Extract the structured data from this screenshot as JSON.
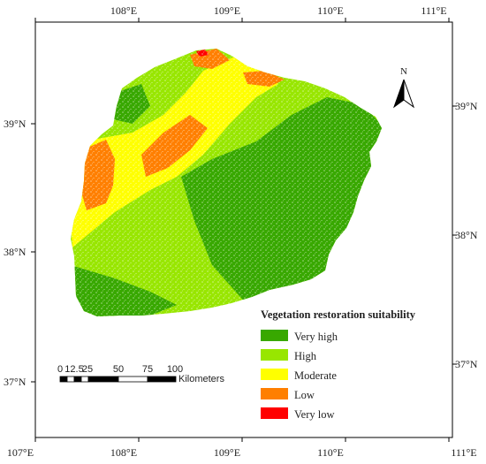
{
  "map": {
    "north_label": "N",
    "lon_labels": [
      "107°E",
      "108°E",
      "109°E",
      "110°E",
      "111°E"
    ],
    "lat_labels": [
      "39°N",
      "38°N",
      "37°N"
    ],
    "legend": {
      "title": "Vegetation restoration suitability",
      "items": [
        {
          "label": "Very high",
          "color": "#38a800"
        },
        {
          "label": "High",
          "color": "#98e600"
        },
        {
          "label": "Moderate",
          "color": "#ffff00"
        },
        {
          "label": "Low",
          "color": "#ff7f00"
        },
        {
          "label": "Very low",
          "color": "#ff0000"
        }
      ]
    },
    "scale_bar": {
      "ticks": [
        "0",
        "12.5",
        "25",
        "50",
        "75",
        "100"
      ],
      "unit": "Kilometers"
    }
  }
}
